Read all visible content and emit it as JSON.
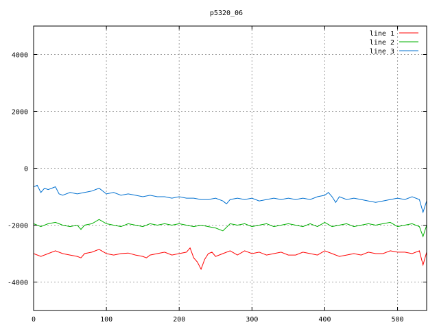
{
  "chart_data": {
    "type": "line",
    "title": "p5320_06",
    "xlabel": "",
    "ylabel": "",
    "xlim": [
      0,
      540
    ],
    "ylim": [
      -5000,
      5000
    ],
    "x_ticks": [
      "0",
      "100",
      "200",
      "300",
      "400",
      "500"
    ],
    "y_ticks": [
      "4000",
      "2000",
      "0",
      "-2000",
      "-4000"
    ],
    "grid": true,
    "legend_position": "top-right",
    "series": [
      {
        "name": "line 1",
        "color": "#ff0000",
        "x": [
          0,
          10,
          20,
          30,
          40,
          50,
          60,
          65,
          70,
          80,
          90,
          100,
          110,
          120,
          130,
          140,
          150,
          155,
          160,
          170,
          180,
          190,
          200,
          210,
          215,
          220,
          225,
          230,
          235,
          240,
          245,
          250,
          260,
          270,
          280,
          290,
          300,
          310,
          320,
          330,
          340,
          350,
          360,
          370,
          380,
          390,
          400,
          410,
          420,
          430,
          440,
          450,
          460,
          470,
          480,
          490,
          500,
          510,
          520,
          530,
          535,
          540
        ],
        "y": [
          -3000,
          -3100,
          -3000,
          -2900,
          -3000,
          -3050,
          -3100,
          -3150,
          -3000,
          -2950,
          -2850,
          -3000,
          -3050,
          -3000,
          -2980,
          -3050,
          -3100,
          -3150,
          -3050,
          -3000,
          -2950,
          -3050,
          -3000,
          -2950,
          -2800,
          -3150,
          -3300,
          -3550,
          -3200,
          -3000,
          -2950,
          -3100,
          -3000,
          -2900,
          -3050,
          -2900,
          -3000,
          -2950,
          -3050,
          -3000,
          -2950,
          -3050,
          -3050,
          -2950,
          -3000,
          -3050,
          -2900,
          -3000,
          -3100,
          -3050,
          -3000,
          -3050,
          -2950,
          -3000,
          -3000,
          -2900,
          -2950,
          -2950,
          -3000,
          -2900,
          -3400,
          -2950
        ]
      },
      {
        "name": "line 2",
        "color": "#00b000",
        "x": [
          0,
          10,
          20,
          30,
          40,
          50,
          60,
          65,
          70,
          80,
          90,
          100,
          110,
          120,
          130,
          140,
          150,
          160,
          170,
          180,
          190,
          200,
          210,
          220,
          230,
          240,
          250,
          260,
          270,
          280,
          290,
          300,
          310,
          320,
          330,
          340,
          350,
          360,
          370,
          380,
          390,
          400,
          410,
          420,
          430,
          440,
          450,
          460,
          470,
          480,
          490,
          500,
          510,
          520,
          530,
          535,
          540
        ],
        "y": [
          -1950,
          -2050,
          -1950,
          -1900,
          -2000,
          -2050,
          -2000,
          -2150,
          -2000,
          -1950,
          -1800,
          -1950,
          -2000,
          -2050,
          -1950,
          -2000,
          -2050,
          -1950,
          -2000,
          -1950,
          -2000,
          -1950,
          -2000,
          -2050,
          -2000,
          -2050,
          -2100,
          -2200,
          -1950,
          -2000,
          -1950,
          -2050,
          -2000,
          -1950,
          -2050,
          -2000,
          -1950,
          -2000,
          -2050,
          -1950,
          -2050,
          -1900,
          -2050,
          -2000,
          -1950,
          -2050,
          -2000,
          -1950,
          -2000,
          -1950,
          -1900,
          -2050,
          -2000,
          -1950,
          -2050,
          -2400,
          -2000
        ]
      },
      {
        "name": "line 3",
        "color": "#0070d0",
        "x": [
          0,
          5,
          10,
          15,
          20,
          25,
          30,
          35,
          40,
          50,
          60,
          70,
          80,
          90,
          100,
          110,
          120,
          130,
          140,
          150,
          160,
          170,
          180,
          190,
          200,
          210,
          220,
          230,
          240,
          250,
          260,
          265,
          270,
          280,
          290,
          300,
          310,
          320,
          330,
          340,
          350,
          360,
          370,
          380,
          390,
          400,
          405,
          410,
          415,
          420,
          430,
          440,
          450,
          460,
          470,
          480,
          490,
          500,
          510,
          520,
          530,
          535,
          540
        ],
        "y": [
          -650,
          -600,
          -850,
          -700,
          -750,
          -700,
          -650,
          -900,
          -950,
          -850,
          -900,
          -850,
          -800,
          -700,
          -900,
          -850,
          -950,
          -900,
          -950,
          -1000,
          -950,
          -1000,
          -1000,
          -1050,
          -1000,
          -1050,
          -1050,
          -1100,
          -1100,
          -1050,
          -1150,
          -1250,
          -1100,
          -1050,
          -1100,
          -1050,
          -1150,
          -1100,
          -1050,
          -1100,
          -1050,
          -1100,
          -1050,
          -1100,
          -1000,
          -950,
          -850,
          -1000,
          -1200,
          -1000,
          -1100,
          -1050,
          -1100,
          -1150,
          -1200,
          -1150,
          -1100,
          -1050,
          -1100,
          -1000,
          -1100,
          -1550,
          -1150
        ]
      }
    ]
  }
}
